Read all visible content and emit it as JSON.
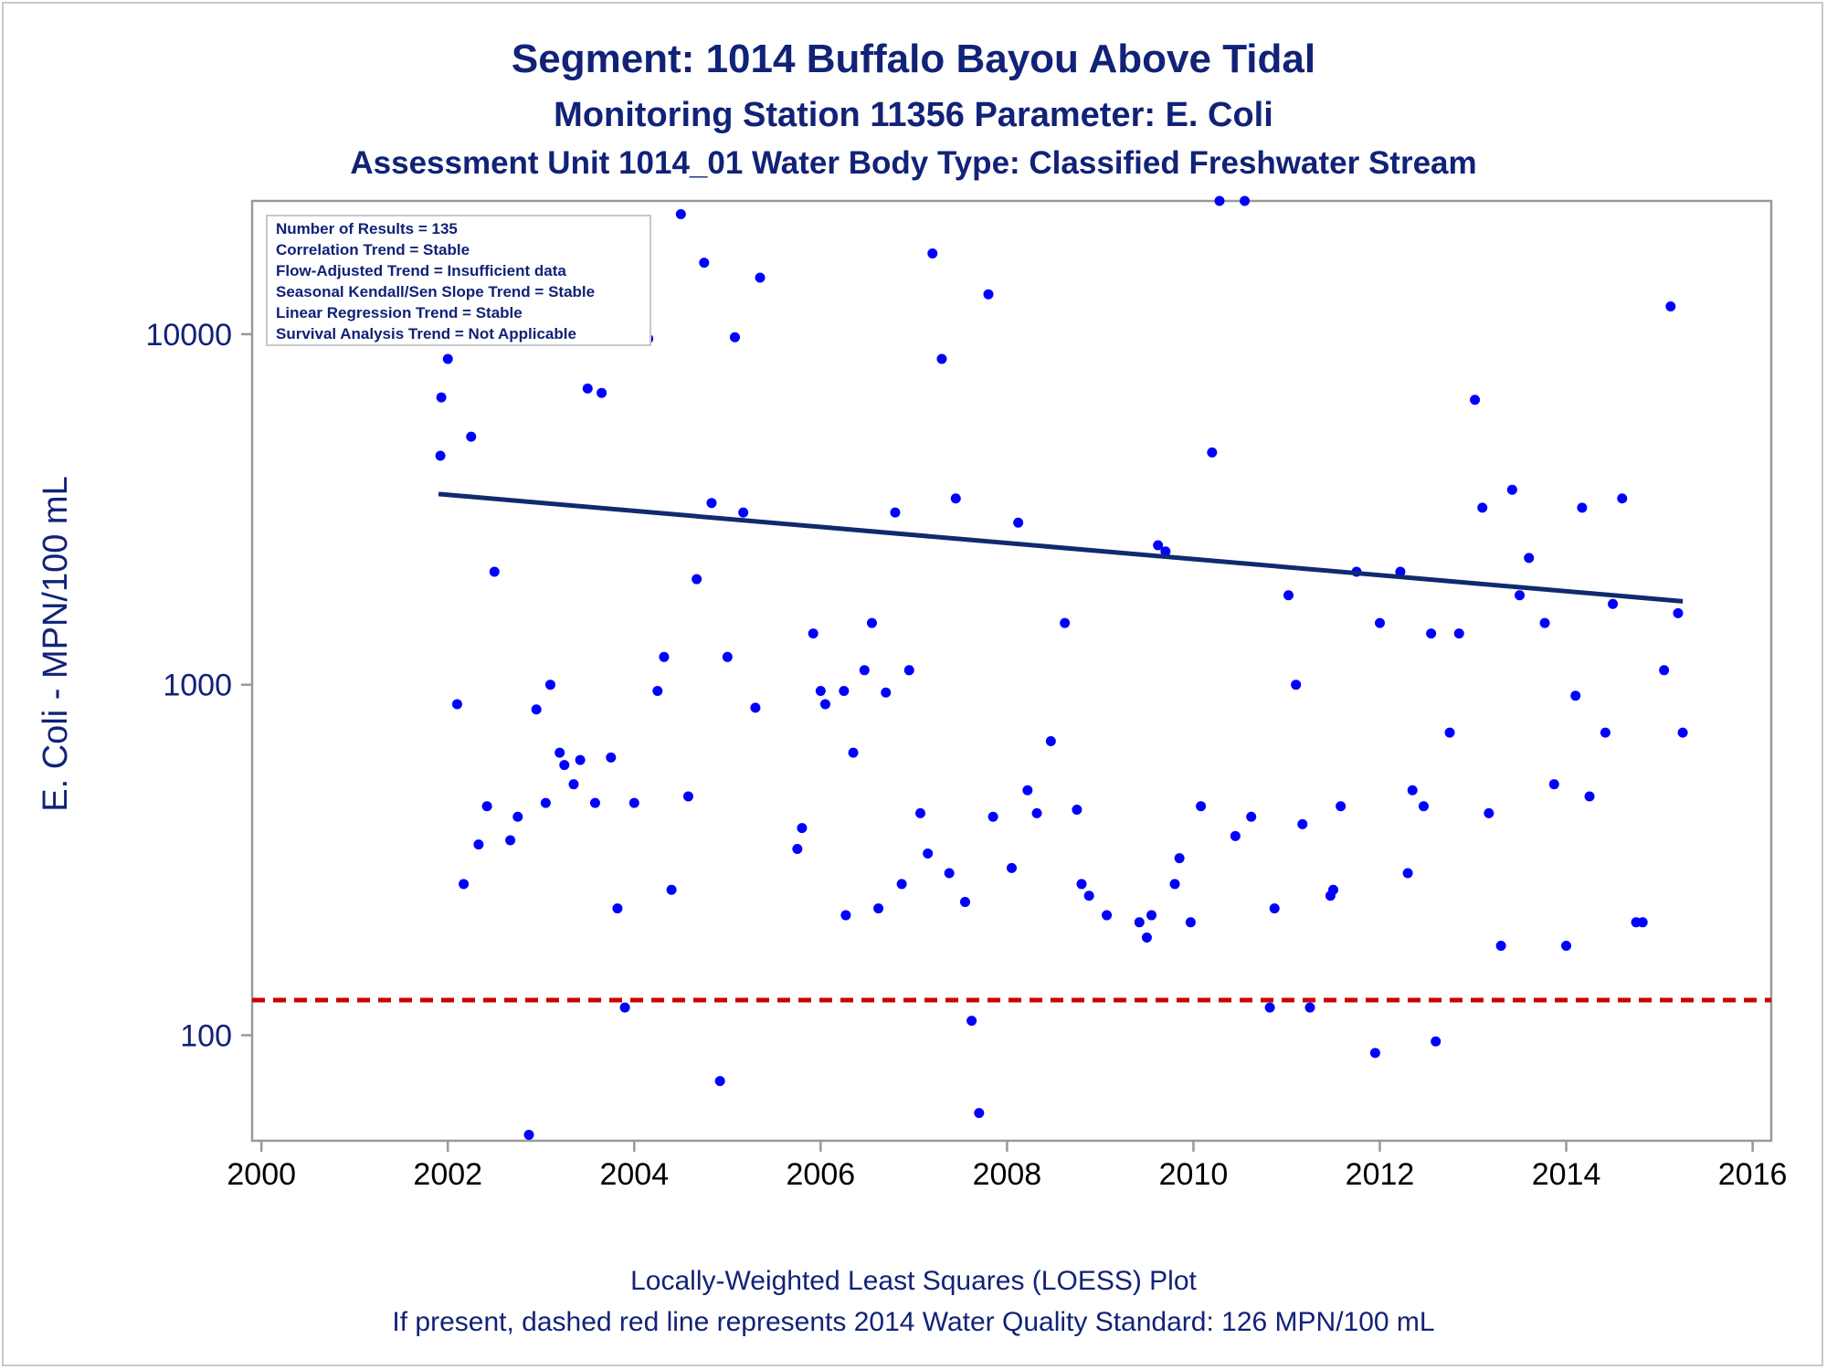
{
  "colors": {
    "title": "#112277",
    "point": "#0000ff",
    "trend": "#0f2a6e",
    "standard": "#cc0000",
    "axis": "#999999"
  },
  "stats_box": {
    "lines": [
      "Number of Results = 135",
      "Correlation Trend = Stable",
      "Flow-Adjusted Trend = Insufficient data",
      "Seasonal Kendall/Sen Slope Trend = Stable",
      "Linear Regression Trend = Stable",
      "Survival Analysis Trend = Not Applicable"
    ]
  },
  "chart_data": {
    "type": "scatter",
    "title": "Segment: 1014  Buffalo Bayou Above Tidal",
    "subtitle": "Monitoring Station 11356 Parameter: E. Coli",
    "subtitle2": "Assessment Unit 1014_01   Water Body Type: Classified Freshwater Stream",
    "xlabel": "",
    "ylabel": "E. Coli - MPN/100 mL",
    "footnote1": "Locally-Weighted Least Squares (LOESS) Plot",
    "footnote2": "If present, dashed red line represents 2014 Water Quality Standard: 126 MPN/100 mL",
    "xlim": [
      1999.9,
      2016.2
    ],
    "ylim": [
      50,
      24000
    ],
    "yscale": "log",
    "xticks": [
      2000,
      2002,
      2004,
      2006,
      2008,
      2010,
      2012,
      2014,
      2016
    ],
    "yticks": [
      100,
      1000,
      10000
    ],
    "grid": false,
    "standard_line": {
      "y": 126,
      "style": "dashed"
    },
    "trend_line": {
      "x": [
        2001.9,
        2015.25
      ],
      "y": [
        3500,
        1730
      ]
    },
    "series": [
      {
        "x": [
          2001.92,
          2001.93,
          2002.0,
          2002.1,
          2002.17,
          2002.25,
          2002.33,
          2002.42,
          2002.5,
          2002.58,
          2002.67,
          2002.75,
          2002.87,
          2002.95,
          2003.05,
          2003.1,
          2003.2,
          2003.25,
          2003.35,
          2003.42,
          2003.5,
          2003.58,
          2003.65,
          2003.75,
          2003.82,
          2003.9,
          2004.0,
          2004.07,
          2004.15,
          2004.25,
          2004.32,
          2004.4,
          2004.5,
          2004.58,
          2004.67,
          2004.75,
          2004.83,
          2004.92,
          2005.0,
          2005.08,
          2005.17,
          2005.3,
          2005.35,
          2005.75,
          2005.8,
          2005.92,
          2006.0,
          2006.05,
          2006.25,
          2006.27,
          2006.35,
          2006.47,
          2006.55,
          2006.62,
          2006.7,
          2006.8,
          2006.87,
          2006.95,
          2007.07,
          2007.15,
          2007.2,
          2007.3,
          2007.38,
          2007.45,
          2007.55,
          2007.62,
          2007.7,
          2007.8,
          2007.85,
          2008.05,
          2008.12,
          2008.22,
          2008.32,
          2008.47,
          2008.62,
          2008.75,
          2008.8,
          2008.88,
          2009.07,
          2009.42,
          2009.5,
          2009.55,
          2009.62,
          2009.7,
          2009.8,
          2009.85,
          2009.97,
          2010.08,
          2010.2,
          2010.28,
          2010.45,
          2010.55,
          2010.62,
          2010.82,
          2010.87,
          2011.02,
          2011.1,
          2011.17,
          2011.25,
          2011.47,
          2011.5,
          2011.58,
          2011.75,
          2011.95,
          2012.0,
          2012.22,
          2012.3,
          2012.35,
          2012.47,
          2012.55,
          2012.6,
          2012.75,
          2012.85,
          2013.02,
          2013.1,
          2013.17,
          2013.3,
          2013.42,
          2013.5,
          2013.6,
          2013.77,
          2013.87,
          2014.0,
          2014.1,
          2014.17,
          2014.25,
          2014.42,
          2014.5,
          2014.6,
          2014.75,
          2014.82,
          2015.05,
          2015.12,
          2015.2,
          2015.25
        ],
        "y": [
          4500,
          6600,
          8500,
          880,
          270,
          5100,
          350,
          450,
          2100,
          14500,
          360,
          420,
          52,
          850,
          460,
          1000,
          640,
          590,
          520,
          610,
          7000,
          460,
          6800,
          620,
          230,
          120,
          460,
          10000,
          9700,
          960,
          1200,
          260,
          22000,
          480,
          2000,
          16000,
          3300,
          74,
          1200,
          9800,
          3100,
          860,
          14500,
          340,
          390,
          1400,
          960,
          880,
          960,
          220,
          640,
          1100,
          1500,
          230,
          950,
          3100,
          270,
          1100,
          430,
          330,
          17000,
          8500,
          290,
          3400,
          240,
          110,
          60,
          13000,
          420,
          300,
          2900,
          500,
          430,
          690,
          1500,
          440,
          270,
          250,
          220,
          210,
          190,
          220,
          2500,
          2400,
          270,
          320,
          210,
          450,
          4600,
          24000,
          370,
          24000,
          420,
          120,
          230,
          1800,
          1000,
          400,
          120,
          250,
          260,
          450,
          2100,
          89,
          1500,
          2100,
          290,
          500,
          450,
          1400,
          96,
          730,
          1400,
          6500,
          3200,
          430,
          180,
          3600,
          1800,
          2300,
          1500,
          520,
          180,
          930,
          3200,
          480,
          730,
          1700,
          3400,
          210,
          210,
          1100,
          12000,
          1600,
          730
        ]
      }
    ]
  }
}
